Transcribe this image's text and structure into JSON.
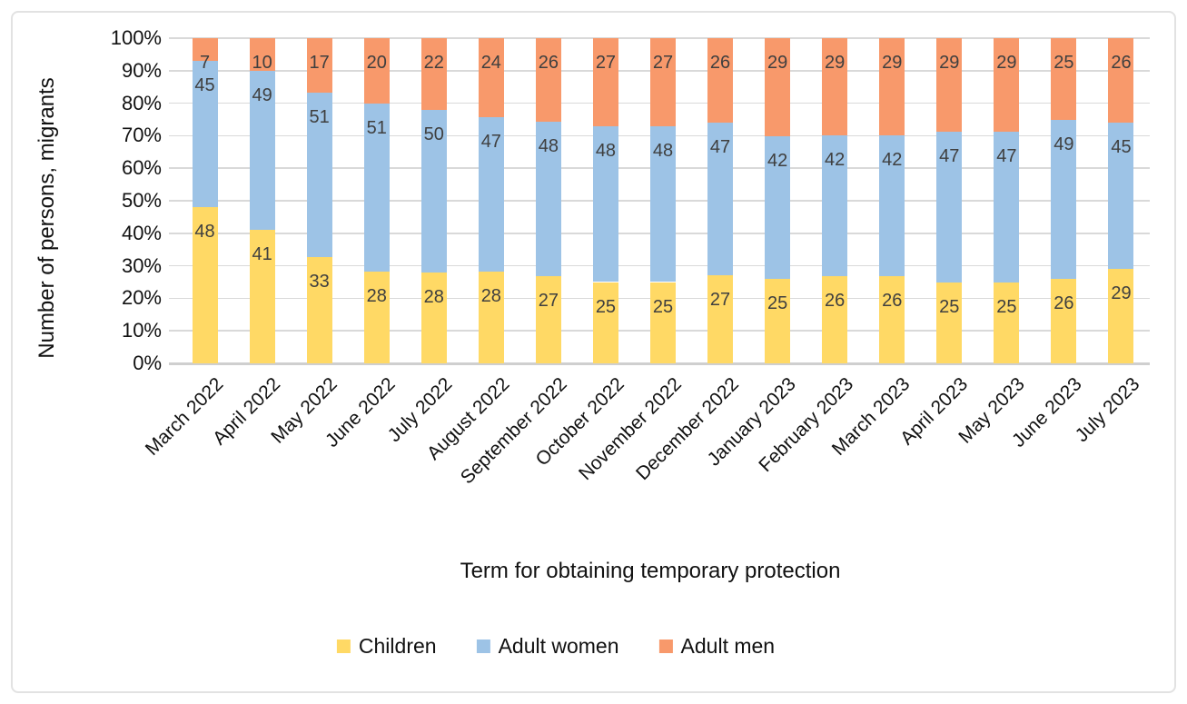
{
  "chart_data": {
    "type": "bar",
    "subtype": "stacked-100-percent",
    "orientation": "vertical",
    "title": "",
    "xlabel": "Term for obtaining temporary protection",
    "ylabel": "Number of persons, migrants",
    "categories": [
      "March 2022",
      "April 2022",
      "May 2022",
      "June 2022",
      "July 2022",
      "August 2022",
      "September 2022",
      "October 2022",
      "November 2022",
      "December 2022",
      "January 2023",
      "February 2023",
      "March 2023",
      "April 2023",
      "May 2023",
      "June 2023",
      "July 2023"
    ],
    "series": [
      {
        "name": "Children",
        "color": "#FFD965",
        "values": [
          48,
          41,
          33,
          28,
          28,
          28,
          27,
          25,
          25,
          27,
          25,
          26,
          26,
          25,
          25,
          26,
          29
        ]
      },
      {
        "name": "Adult women",
        "color": "#9DC3E6",
        "values": [
          45,
          49,
          51,
          51,
          50,
          47,
          48,
          48,
          48,
          47,
          42,
          42,
          42,
          47,
          47,
          49,
          45
        ]
      },
      {
        "name": "Adult men",
        "color": "#F8996B",
        "values": [
          7,
          10,
          17,
          20,
          22,
          24,
          26,
          27,
          27,
          26,
          29,
          29,
          29,
          29,
          29,
          25,
          26
        ]
      }
    ],
    "y_ticks": [
      "0%",
      "10%",
      "20%",
      "30%",
      "40%",
      "50%",
      "60%",
      "70%",
      "80%",
      "90%",
      "100%"
    ],
    "ylim": [
      0,
      100
    ],
    "grid": true,
    "gridline_color": "#d9d9d9",
    "data_label_color": "#3f3f3f",
    "legend": {
      "position": "bottom",
      "entries": [
        "Children",
        "Adult women",
        "Adult men"
      ]
    }
  }
}
